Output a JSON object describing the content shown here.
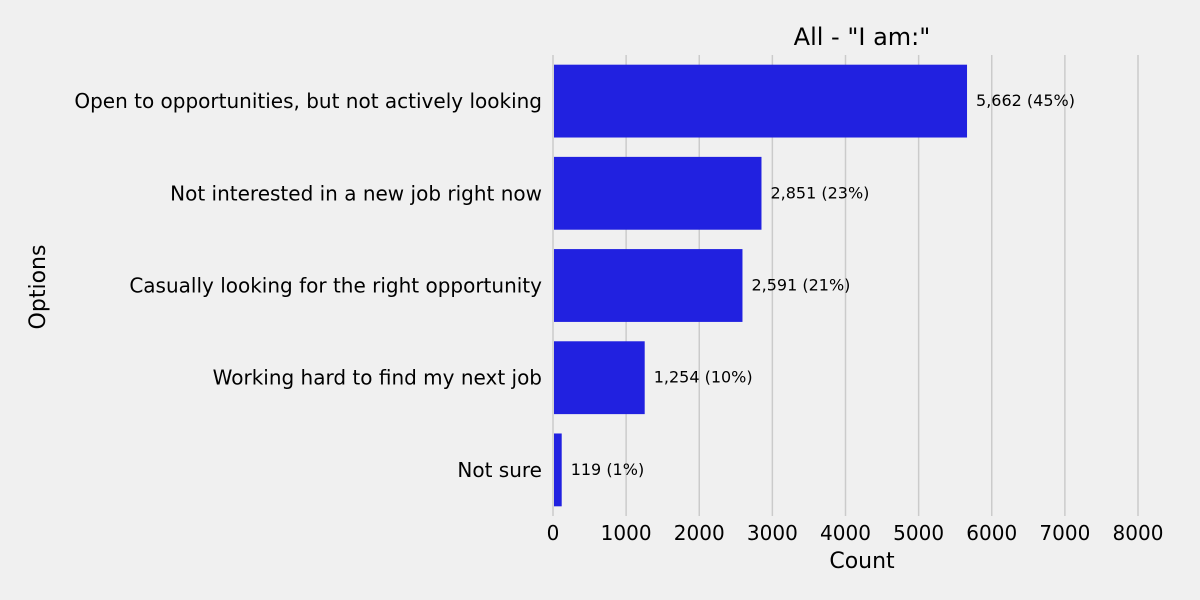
{
  "chart_data": {
    "type": "bar",
    "orientation": "horizontal",
    "title": "All - \"I am:\"",
    "xlabel": "Count",
    "ylabel": "Options",
    "xlim": [
      0,
      8000
    ],
    "xticks": [
      0,
      1000,
      2000,
      3000,
      4000,
      5000,
      6000,
      7000,
      8000
    ],
    "grid": true,
    "categories": [
      "Open to opportunities, but not actively looking",
      "Not interested in a new job right now",
      "Casually looking for the right opportunity",
      "Working hard to find my next job",
      "Not sure"
    ],
    "values": [
      5662,
      2851,
      2591,
      1254,
      119
    ],
    "data_labels": [
      "5,662 (45%)",
      "2,851 (23%)",
      "2,591 (21%)",
      "1,254 (10%)",
      "119 (1%)"
    ],
    "bar_color": "#2121e0"
  }
}
